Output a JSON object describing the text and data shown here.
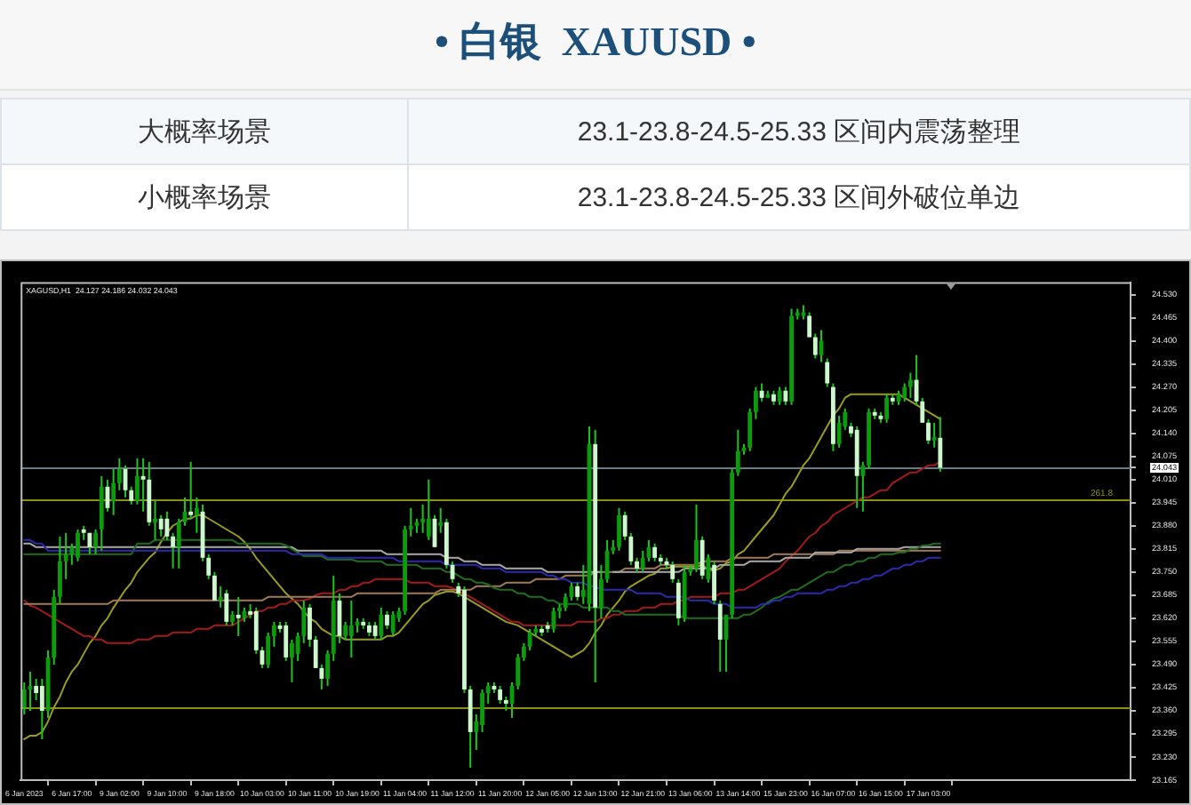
{
  "chart_data": {
    "type": "candlestick",
    "title": "• 白银  XAUUSD •",
    "subtitle": "XAGUSD,H1  24.127 24.186 24.032 24.043",
    "annotations": [
      "大概率场景",
      "23.1-23.8-24.5-25.33 区间内震荡整理",
      "小概率场景",
      "23.1-23.8-24.5-25.33 区间外破位单边",
      {
        "text": "261.8",
        "y": 23.954
      }
    ],
    "categories": [
      "6 Jan 2023",
      null,
      null,
      null,
      null,
      null,
      null,
      null,
      "6 Jan 17:00",
      null,
      null,
      null,
      null,
      null,
      null,
      null,
      "9 Jan 02:00",
      null,
      null,
      null,
      null,
      null,
      null,
      null,
      "9 Jan 10:00",
      null,
      null,
      null,
      null,
      null,
      null,
      null,
      "9 Jan 18:00",
      null,
      null,
      null,
      null,
      null,
      null,
      null,
      "10 Jan 03:00",
      null,
      null,
      null,
      null,
      null,
      null,
      null,
      "10 Jan 11:00",
      null,
      null,
      null,
      null,
      null,
      null,
      null,
      "10 Jan 19:00",
      null,
      null,
      null,
      null,
      null,
      null,
      null,
      "11 Jan 04:00",
      null,
      null,
      null,
      null,
      null,
      null,
      null,
      "11 Jan 12:00",
      null,
      null,
      null,
      null,
      null,
      null,
      null,
      "11 Jan 20:00",
      null,
      null,
      null,
      null,
      null,
      null,
      null,
      "12 Jan 05:00",
      null,
      null,
      null,
      null,
      null,
      null,
      null,
      "12 Jan 13:00",
      null,
      null,
      null,
      null,
      null,
      null,
      null,
      "12 Jan 21:00",
      null,
      null,
      null,
      null,
      null,
      null,
      null,
      "13 Jan 06:00",
      null,
      null,
      null,
      null,
      null,
      null,
      null,
      "13 Jan 14:00",
      null,
      null,
      null,
      null,
      null,
      null,
      null,
      "15 Jan 23:00",
      null,
      null,
      null,
      null,
      null,
      null,
      null,
      "16 Jan 07:00",
      null,
      null,
      null,
      null,
      null,
      null,
      null,
      "16 Jan 15:00",
      null,
      null,
      null,
      null,
      null,
      null,
      null,
      "17 Jan 03:00",
      null,
      null
    ],
    "ohlc": [
      [
        23.37,
        23.44,
        23.35,
        23.42
      ],
      [
        23.42,
        23.47,
        23.36,
        23.43
      ],
      [
        23.43,
        23.45,
        23.39,
        23.41
      ],
      [
        23.43,
        23.45,
        23.28,
        23.36
      ],
      [
        23.36,
        23.53,
        23.34,
        23.51
      ],
      [
        23.51,
        23.7,
        23.49,
        23.68
      ],
      [
        23.68,
        23.85,
        23.66,
        23.78
      ],
      [
        23.78,
        23.86,
        23.73,
        23.8
      ],
      [
        23.8,
        23.83,
        23.77,
        23.82
      ],
      [
        23.79,
        23.87,
        23.78,
        23.86
      ],
      [
        23.87,
        23.88,
        23.84,
        23.86
      ],
      [
        23.86,
        23.86,
        23.8,
        23.82
      ],
      [
        23.82,
        23.87,
        23.8,
        23.86
      ],
      [
        23.87,
        24.02,
        23.81,
        23.99
      ],
      [
        23.99,
        24.01,
        23.92,
        23.93
      ],
      [
        23.95,
        24.04,
        23.91,
        24.0
      ],
      [
        24.0,
        24.07,
        23.98,
        24.04
      ],
      [
        24.04,
        24.05,
        23.96,
        23.98
      ],
      [
        23.98,
        23.99,
        23.94,
        23.95
      ],
      [
        23.95,
        24.07,
        23.94,
        24.02
      ],
      [
        24.02,
        24.07,
        23.92,
        24.01
      ],
      [
        24.01,
        24.06,
        23.88,
        23.89
      ],
      [
        23.89,
        23.95,
        23.84,
        23.9
      ],
      [
        23.9,
        23.91,
        23.85,
        23.87
      ],
      [
        23.9,
        23.92,
        23.84,
        23.85
      ],
      [
        23.85,
        23.86,
        23.76,
        23.82
      ],
      [
        23.82,
        23.9,
        23.76,
        23.89
      ],
      [
        23.89,
        23.96,
        23.88,
        23.92
      ],
      [
        23.92,
        24.06,
        23.9,
        23.91
      ],
      [
        23.91,
        23.96,
        23.86,
        23.93
      ],
      [
        23.92,
        23.94,
        23.78,
        23.79
      ],
      [
        23.79,
        23.8,
        23.73,
        23.74
      ],
      [
        23.74,
        23.75,
        23.67,
        23.67
      ],
      [
        23.67,
        23.71,
        23.65,
        23.68
      ],
      [
        23.69,
        23.7,
        23.6,
        23.61
      ],
      [
        23.61,
        23.64,
        23.6,
        23.63
      ],
      [
        23.63,
        23.68,
        23.57,
        23.62
      ],
      [
        23.62,
        23.65,
        23.61,
        23.64
      ],
      [
        23.64,
        23.66,
        23.62,
        23.63
      ],
      [
        23.64,
        23.65,
        23.52,
        23.53
      ],
      [
        23.53,
        23.54,
        23.48,
        23.49
      ],
      [
        23.49,
        23.58,
        23.48,
        23.57
      ],
      [
        23.57,
        23.61,
        23.54,
        23.6
      ],
      [
        23.6,
        23.61,
        23.58,
        23.59
      ],
      [
        23.6,
        23.61,
        23.5,
        23.51
      ],
      [
        23.51,
        23.56,
        23.44,
        23.55
      ],
      [
        23.52,
        23.58,
        23.5,
        23.57
      ],
      [
        23.57,
        23.67,
        23.55,
        23.65
      ],
      [
        23.65,
        23.66,
        23.54,
        23.56
      ],
      [
        23.56,
        23.57,
        23.48,
        23.48
      ],
      [
        23.48,
        23.49,
        23.42,
        23.45
      ],
      [
        23.45,
        23.53,
        23.43,
        23.52
      ],
      [
        23.52,
        23.74,
        23.5,
        23.67
      ],
      [
        23.67,
        23.69,
        23.55,
        23.57
      ],
      [
        23.57,
        23.61,
        23.56,
        23.6
      ],
      [
        23.57,
        23.67,
        23.51,
        23.6
      ],
      [
        23.6,
        23.62,
        23.58,
        23.61
      ],
      [
        23.61,
        23.62,
        23.59,
        23.6
      ],
      [
        23.6,
        23.61,
        23.57,
        23.58
      ],
      [
        23.6,
        23.61,
        23.56,
        23.57
      ],
      [
        23.57,
        23.65,
        23.56,
        23.63
      ],
      [
        23.63,
        23.64,
        23.59,
        23.6
      ],
      [
        23.58,
        23.64,
        23.57,
        23.63
      ],
      [
        23.62,
        23.65,
        23.61,
        23.64
      ],
      [
        23.64,
        23.88,
        23.63,
        23.87
      ],
      [
        23.87,
        23.93,
        23.85,
        23.88
      ],
      [
        23.88,
        23.9,
        23.86,
        23.89
      ],
      [
        23.89,
        23.94,
        23.86,
        23.9
      ],
      [
        23.85,
        24.01,
        23.84,
        23.9
      ],
      [
        23.9,
        23.91,
        23.82,
        23.82
      ],
      [
        23.88,
        23.93,
        23.86,
        23.89
      ],
      [
        23.89,
        23.9,
        23.76,
        23.77
      ],
      [
        23.77,
        23.78,
        23.72,
        23.73
      ],
      [
        23.71,
        23.72,
        23.68,
        23.69
      ],
      [
        23.7,
        23.71,
        23.41,
        23.42
      ],
      [
        23.42,
        23.43,
        23.2,
        23.3
      ],
      [
        23.3,
        23.35,
        23.25,
        23.33
      ],
      [
        23.32,
        23.42,
        23.3,
        23.41
      ],
      [
        23.41,
        23.44,
        23.38,
        23.43
      ],
      [
        23.43,
        23.44,
        23.41,
        23.42
      ],
      [
        23.42,
        23.43,
        23.38,
        23.39
      ],
      [
        23.39,
        23.4,
        23.36,
        23.38
      ],
      [
        23.38,
        23.44,
        23.34,
        23.43
      ],
      [
        23.43,
        23.52,
        23.42,
        23.51
      ],
      [
        23.51,
        23.55,
        23.5,
        23.54
      ],
      [
        23.54,
        23.59,
        23.53,
        23.58
      ],
      [
        23.58,
        23.6,
        23.57,
        23.59
      ],
      [
        23.59,
        23.6,
        23.57,
        23.58
      ],
      [
        23.6,
        23.61,
        23.58,
        23.59
      ],
      [
        23.59,
        23.65,
        23.58,
        23.64
      ],
      [
        23.64,
        23.66,
        23.62,
        23.65
      ],
      [
        23.65,
        23.69,
        23.64,
        23.68
      ],
      [
        23.68,
        23.72,
        23.67,
        23.71
      ],
      [
        23.71,
        23.72,
        23.67,
        23.68
      ],
      [
        23.68,
        23.77,
        23.66,
        23.7
      ],
      [
        23.66,
        24.16,
        23.64,
        24.11
      ],
      [
        24.11,
        24.15,
        23.44,
        23.65
      ],
      [
        23.65,
        23.77,
        23.62,
        23.73
      ],
      [
        23.73,
        23.84,
        23.72,
        23.81
      ],
      [
        23.81,
        23.84,
        23.8,
        23.82
      ],
      [
        23.82,
        23.93,
        23.81,
        23.91
      ],
      [
        23.91,
        23.92,
        23.84,
        23.85
      ],
      [
        23.85,
        23.86,
        23.77,
        23.78
      ],
      [
        23.78,
        23.79,
        23.75,
        23.76
      ],
      [
        23.76,
        23.81,
        23.75,
        23.79
      ],
      [
        23.79,
        23.84,
        23.78,
        23.82
      ],
      [
        23.82,
        23.83,
        23.78,
        23.79
      ],
      [
        23.79,
        23.8,
        23.77,
        23.78
      ],
      [
        23.78,
        23.79,
        23.76,
        23.77
      ],
      [
        23.77,
        23.78,
        23.72,
        23.73
      ],
      [
        23.72,
        23.73,
        23.6,
        23.62
      ],
      [
        23.62,
        23.77,
        23.61,
        23.75
      ],
      [
        23.75,
        23.77,
        23.74,
        23.76
      ],
      [
        23.76,
        23.94,
        23.75,
        23.84
      ],
      [
        23.84,
        23.85,
        23.73,
        23.74
      ],
      [
        23.73,
        23.8,
        23.72,
        23.79
      ],
      [
        23.77,
        23.78,
        23.66,
        23.67
      ],
      [
        23.66,
        23.67,
        23.47,
        23.56
      ],
      [
        23.56,
        23.63,
        23.47,
        23.63
      ],
      [
        23.63,
        24.04,
        23.62,
        24.03
      ],
      [
        24.03,
        24.15,
        24.02,
        24.09
      ],
      [
        24.09,
        24.11,
        24.08,
        24.1
      ],
      [
        24.1,
        24.21,
        24.09,
        24.2
      ],
      [
        24.2,
        24.27,
        24.18,
        24.26
      ],
      [
        24.26,
        24.28,
        24.23,
        24.24
      ],
      [
        24.24,
        24.26,
        24.24,
        24.25
      ],
      [
        24.25,
        24.26,
        24.22,
        24.23
      ],
      [
        24.23,
        24.27,
        24.22,
        24.26
      ],
      [
        24.26,
        24.27,
        24.22,
        24.23
      ],
      [
        24.23,
        24.49,
        24.22,
        24.47
      ],
      [
        24.47,
        24.49,
        24.46,
        24.48
      ],
      [
        24.47,
        24.5,
        24.46,
        24.48
      ],
      [
        24.47,
        24.48,
        24.41,
        24.41
      ],
      [
        24.41,
        24.42,
        24.35,
        24.36
      ],
      [
        24.36,
        24.43,
        24.34,
        24.4
      ],
      [
        24.34,
        24.35,
        24.27,
        24.28
      ],
      [
        24.27,
        24.28,
        24.09,
        24.11
      ],
      [
        24.11,
        24.19,
        24.1,
        24.17
      ],
      [
        24.16,
        24.21,
        24.15,
        24.2
      ],
      [
        24.16,
        24.17,
        24.13,
        24.14
      ],
      [
        24.15,
        24.16,
        23.93,
        24.02
      ],
      [
        24.02,
        24.06,
        23.92,
        24.05
      ],
      [
        24.05,
        24.21,
        24.04,
        24.2
      ],
      [
        24.2,
        24.21,
        24.18,
        24.19
      ],
      [
        24.19,
        24.2,
        24.17,
        24.18
      ],
      [
        24.18,
        24.25,
        24.17,
        24.24
      ],
      [
        24.24,
        24.25,
        24.22,
        24.23
      ],
      [
        24.23,
        24.26,
        24.22,
        24.25
      ],
      [
        24.24,
        24.28,
        24.23,
        24.27
      ],
      [
        24.27,
        24.31,
        24.24,
        24.29
      ],
      [
        24.29,
        24.36,
        24.22,
        24.23
      ],
      [
        24.23,
        24.24,
        24.17,
        24.17
      ],
      [
        24.17,
        24.18,
        24.11,
        24.12
      ],
      [
        24.12,
        24.17,
        24.1,
        24.13
      ],
      [
        24.127,
        24.186,
        24.032,
        24.043
      ]
    ],
    "series": [
      {
        "type": "line",
        "color": "#9b9b1c",
        "values": [
          23.28,
          23.29,
          23.29,
          23.3,
          23.33,
          23.37,
          23.4,
          23.44,
          23.47,
          23.49,
          23.52,
          23.55,
          23.57,
          23.6,
          23.62,
          23.65,
          23.675,
          23.7,
          23.72,
          23.75,
          23.77,
          23.79,
          23.805,
          23.835,
          23.86,
          23.88,
          23.89,
          23.9,
          23.9,
          23.91,
          23.91,
          23.9,
          23.89,
          23.88,
          23.87,
          23.86,
          23.85,
          23.835,
          23.815,
          23.79,
          23.77,
          23.75,
          23.73,
          23.71,
          23.69,
          23.675,
          23.66,
          23.64,
          23.62,
          23.61,
          23.59,
          23.58,
          23.57,
          23.57,
          23.56,
          23.56,
          23.56,
          23.56,
          23.56,
          23.56,
          23.56,
          23.57,
          23.57,
          23.58,
          23.6,
          23.62,
          23.64,
          23.66,
          23.67,
          23.685,
          23.69,
          23.695,
          23.695,
          23.69,
          23.68,
          23.67,
          23.66,
          23.65,
          23.64,
          23.63,
          23.62,
          23.61,
          23.605,
          23.6,
          23.59,
          23.58,
          23.57,
          23.56,
          23.55,
          23.54,
          23.53,
          23.52,
          23.51,
          23.52,
          23.53,
          23.55,
          23.58,
          23.6,
          23.63,
          23.65,
          23.67,
          23.695,
          23.71,
          23.72,
          23.73,
          23.74,
          23.745,
          23.76,
          23.76,
          23.765,
          23.765,
          23.765,
          23.765,
          23.765,
          23.77,
          23.755,
          23.755,
          23.76,
          23.775,
          23.78,
          23.8,
          23.81,
          23.83,
          23.85,
          23.87,
          23.89,
          23.91,
          23.94,
          23.97,
          23.99,
          24.02,
          24.05,
          24.07,
          24.1,
          24.13,
          24.16,
          24.19,
          24.21,
          24.24,
          24.25,
          24.25,
          24.25,
          24.25,
          24.25,
          24.25,
          24.25,
          24.25,
          24.25,
          24.24,
          24.23,
          24.22,
          24.21,
          24.2,
          24.19,
          24.18
        ]
      },
      {
        "type": "line",
        "color": "#a31a1a",
        "values": [
          23.67,
          23.655,
          23.65,
          23.64,
          23.63,
          23.62,
          23.61,
          23.6,
          23.59,
          23.58,
          23.57,
          23.57,
          23.56,
          23.56,
          23.55,
          23.55,
          23.55,
          23.55,
          23.55,
          23.56,
          23.56,
          23.56,
          23.57,
          23.57,
          23.57,
          23.58,
          23.58,
          23.58,
          23.58,
          23.59,
          23.59,
          23.59,
          23.6,
          23.6,
          23.6,
          23.6,
          23.61,
          23.62,
          23.63,
          23.64,
          23.64,
          23.65,
          23.65,
          23.66,
          23.66,
          23.67,
          23.67,
          23.67,
          23.675,
          23.685,
          23.69,
          23.69,
          23.69,
          23.7,
          23.7,
          23.71,
          23.71,
          23.72,
          23.72,
          23.73,
          23.73,
          23.73,
          23.73,
          23.73,
          23.73,
          23.72,
          23.72,
          23.72,
          23.72,
          23.71,
          23.71,
          23.71,
          23.705,
          23.695,
          23.69,
          23.68,
          23.67,
          23.66,
          23.65,
          23.64,
          23.63,
          23.62,
          23.61,
          23.61,
          23.6,
          23.6,
          23.6,
          23.6,
          23.6,
          23.6,
          23.6,
          23.6,
          23.6,
          23.61,
          23.61,
          23.61,
          23.61,
          23.62,
          23.62,
          23.63,
          23.63,
          23.64,
          23.64,
          23.64,
          23.65,
          23.65,
          23.65,
          23.66,
          23.66,
          23.66,
          23.67,
          23.67,
          23.68,
          23.68,
          23.68,
          23.68,
          23.68,
          23.69,
          23.69,
          23.69,
          23.7,
          23.7,
          23.71,
          23.72,
          23.73,
          23.74,
          23.75,
          23.76,
          23.78,
          23.795,
          23.81,
          23.83,
          23.85,
          23.86,
          23.88,
          23.89,
          23.91,
          23.92,
          23.93,
          23.94,
          23.95,
          23.96,
          23.96,
          23.97,
          23.98,
          23.98,
          24.0,
          24.01,
          24.02,
          24.03,
          24.03,
          24.04,
          24.05,
          24.05,
          24.06
        ]
      },
      {
        "type": "line",
        "color": "#a27a55",
        "values": [
          23.66,
          23.66,
          23.66,
          23.66,
          23.66,
          23.66,
          23.66,
          23.66,
          23.66,
          23.66,
          23.66,
          23.66,
          23.66,
          23.66,
          23.66,
          23.67,
          23.67,
          23.67,
          23.67,
          23.67,
          23.67,
          23.67,
          23.67,
          23.67,
          23.67,
          23.67,
          23.67,
          23.67,
          23.67,
          23.67,
          23.67,
          23.67,
          23.67,
          23.67,
          23.67,
          23.67,
          23.67,
          23.67,
          23.67,
          23.67,
          23.67,
          23.68,
          23.68,
          23.68,
          23.68,
          23.68,
          23.68,
          23.68,
          23.68,
          23.68,
          23.68,
          23.68,
          23.68,
          23.68,
          23.68,
          23.68,
          23.69,
          23.69,
          23.69,
          23.69,
          23.69,
          23.69,
          23.69,
          23.69,
          23.69,
          23.69,
          23.69,
          23.69,
          23.69,
          23.69,
          23.7,
          23.7,
          23.7,
          23.7,
          23.7,
          23.7,
          23.71,
          23.71,
          23.71,
          23.71,
          23.71,
          23.72,
          23.72,
          23.72,
          23.72,
          23.72,
          23.73,
          23.73,
          23.73,
          23.73,
          23.73,
          23.74,
          23.74,
          23.74,
          23.74,
          23.74,
          23.75,
          23.75,
          23.75,
          23.75,
          23.75,
          23.76,
          23.76,
          23.76,
          23.76,
          23.76,
          23.76,
          23.77,
          23.77,
          23.77,
          23.77,
          23.77,
          23.77,
          23.77,
          23.78,
          23.78,
          23.78,
          23.78,
          23.78,
          23.79,
          23.79,
          23.79,
          23.79,
          23.79,
          23.79,
          23.79,
          23.8,
          23.8,
          23.8,
          23.8,
          23.8,
          23.8,
          23.8,
          23.8,
          23.8,
          23.8,
          23.8,
          23.81,
          23.81,
          23.81,
          23.81,
          23.81,
          23.81,
          23.81,
          23.81,
          23.81,
          23.81,
          23.81,
          23.81,
          23.81,
          23.81,
          23.81,
          23.81,
          23.81,
          23.81
        ]
      },
      {
        "type": "line",
        "color": "#a9a9a9",
        "values": [
          23.83,
          23.83,
          23.82,
          23.82,
          23.82,
          23.82,
          23.82,
          23.82,
          23.82,
          23.82,
          23.82,
          23.82,
          23.82,
          23.82,
          23.82,
          23.82,
          23.82,
          23.82,
          23.82,
          23.82,
          23.82,
          23.82,
          23.82,
          23.82,
          23.82,
          23.82,
          23.82,
          23.82,
          23.82,
          23.82,
          23.82,
          23.82,
          23.82,
          23.82,
          23.82,
          23.82,
          23.82,
          23.82,
          23.82,
          23.82,
          23.82,
          23.82,
          23.82,
          23.82,
          23.82,
          23.82,
          23.81,
          23.81,
          23.81,
          23.81,
          23.81,
          23.81,
          23.81,
          23.81,
          23.81,
          23.81,
          23.81,
          23.81,
          23.81,
          23.81,
          23.81,
          23.8,
          23.8,
          23.8,
          23.8,
          23.8,
          23.8,
          23.8,
          23.8,
          23.8,
          23.8,
          23.79,
          23.79,
          23.79,
          23.78,
          23.78,
          23.78,
          23.77,
          23.77,
          23.77,
          23.77,
          23.76,
          23.76,
          23.76,
          23.76,
          23.76,
          23.76,
          23.76,
          23.75,
          23.75,
          23.75,
          23.75,
          23.75,
          23.75,
          23.75,
          23.75,
          23.75,
          23.75,
          null,
          23.75,
          23.75,
          23.75,
          23.75,
          23.75,
          23.75,
          23.75,
          23.75,
          23.75,
          23.75,
          23.75,
          23.75,
          23.76,
          23.76,
          23.76,
          23.76,
          23.76,
          23.76,
          23.77,
          23.77,
          23.77,
          23.77,
          23.77,
          23.78,
          23.78,
          23.78,
          23.78,
          23.78,
          23.78,
          23.79,
          23.79,
          23.79,
          23.79,
          23.79,
          23.805,
          23.805,
          23.805,
          23.805,
          23.805,
          23.805,
          23.805,
          23.815,
          23.815,
          23.815,
          23.815,
          23.815,
          23.815,
          23.815,
          23.815,
          23.82,
          23.82,
          23.82,
          23.82,
          23.82,
          23.82,
          23.82
        ]
      },
      {
        "type": "line",
        "color": "#1f6e1f",
        "values": [
          23.8,
          23.8,
          23.8,
          23.8,
          23.8,
          23.8,
          23.8,
          23.8,
          23.8,
          23.8,
          23.8,
          23.8,
          23.8,
          23.8,
          23.8,
          23.8,
          23.8,
          23.8,
          23.8,
          23.83,
          23.83,
          23.83,
          23.84,
          23.84,
          23.84,
          23.84,
          23.84,
          23.84,
          23.84,
          23.84,
          23.84,
          23.84,
          23.84,
          23.84,
          23.84,
          23.84,
          23.83,
          23.83,
          23.83,
          23.83,
          23.83,
          23.83,
          23.83,
          23.83,
          23.825,
          23.815,
          23.805,
          23.795,
          23.795,
          23.795,
          23.795,
          23.785,
          23.785,
          23.785,
          23.785,
          23.785,
          23.78,
          23.78,
          23.78,
          23.78,
          23.78,
          23.77,
          23.77,
          23.77,
          23.77,
          23.77,
          23.77,
          23.76,
          23.76,
          23.76,
          23.76,
          23.75,
          23.75,
          23.74,
          23.73,
          23.73,
          23.72,
          23.72,
          23.715,
          23.705,
          23.7,
          23.7,
          23.7,
          23.69,
          23.69,
          23.68,
          23.68,
          23.68,
          23.67,
          23.67,
          23.66,
          23.66,
          23.66,
          23.66,
          23.65,
          23.65,
          23.65,
          23.65,
          23.65,
          23.64,
          23.64,
          23.63,
          23.63,
          23.63,
          23.63,
          23.63,
          23.63,
          23.63,
          23.63,
          23.63,
          23.63,
          23.62,
          23.62,
          23.62,
          23.62,
          23.62,
          23.62,
          23.62,
          23.62,
          23.62,
          23.62,
          23.63,
          23.63,
          23.64,
          23.65,
          23.665,
          23.675,
          23.68,
          23.69,
          23.7,
          23.7,
          23.71,
          23.72,
          23.73,
          23.74,
          23.75,
          23.75,
          23.76,
          23.77,
          23.77,
          23.78,
          23.78,
          23.79,
          23.79,
          23.8,
          23.8,
          23.8,
          23.805,
          23.805,
          23.815,
          23.815,
          23.825,
          23.825,
          23.83,
          23.83
        ]
      },
      {
        "type": "line",
        "color": "#2b2bb0",
        "values": [
          23.84,
          23.84,
          23.83,
          23.83,
          23.81,
          23.81,
          23.81,
          23.81,
          23.81,
          23.81,
          23.81,
          23.81,
          23.81,
          23.81,
          23.81,
          23.81,
          23.81,
          23.81,
          23.81,
          23.81,
          23.81,
          23.81,
          23.81,
          23.81,
          23.81,
          23.81,
          23.81,
          23.81,
          23.81,
          23.81,
          23.81,
          23.81,
          23.81,
          23.81,
          23.81,
          23.81,
          23.81,
          23.81,
          23.81,
          23.81,
          23.81,
          23.81,
          23.81,
          23.81,
          23.81,
          23.8,
          23.8,
          23.8,
          23.8,
          23.8,
          23.8,
          23.79,
          23.79,
          23.79,
          23.79,
          23.79,
          23.79,
          23.79,
          23.79,
          23.79,
          23.79,
          23.79,
          23.79,
          23.78,
          23.78,
          23.78,
          23.78,
          23.78,
          23.78,
          23.78,
          23.78,
          23.77,
          23.77,
          23.77,
          23.77,
          23.77,
          23.77,
          23.76,
          23.76,
          23.76,
          23.76,
          23.75,
          23.75,
          23.75,
          23.75,
          23.75,
          23.75,
          23.75,
          23.74,
          23.74,
          23.73,
          23.73,
          23.72,
          23.72,
          23.72,
          23.71,
          23.71,
          23.7,
          23.7,
          23.7,
          23.7,
          23.7,
          23.7,
          23.69,
          23.69,
          23.69,
          23.69,
          23.69,
          23.68,
          23.68,
          23.68,
          23.68,
          23.67,
          23.67,
          23.67,
          23.67,
          23.66,
          23.66,
          23.66,
          23.65,
          23.65,
          23.65,
          23.65,
          23.65,
          23.66,
          23.66,
          23.67,
          23.67,
          23.68,
          23.68,
          23.69,
          23.69,
          23.69,
          23.69,
          23.69,
          23.7,
          23.7,
          23.71,
          23.71,
          23.72,
          23.72,
          23.73,
          23.73,
          23.74,
          23.74,
          23.75,
          23.76,
          23.76,
          23.77,
          23.77,
          23.78,
          23.78,
          23.79,
          23.79,
          23.79
        ]
      }
    ],
    "ylim": [
      23.165,
      24.565
    ],
    "yticks": [
      23.165,
      {
        "value": 23.23,
        "label": "23.230"
      },
      23.295,
      {
        "value": 23.36,
        "label": "23.360"
      },
      23.425,
      {
        "value": 23.49,
        "label": "23.490"
      },
      23.555,
      {
        "value": 23.62,
        "label": "23.620"
      },
      23.685,
      {
        "value": 23.75,
        "label": "23.750"
      },
      23.815,
      {
        "value": 23.88,
        "label": "23.880"
      },
      23.945,
      {
        "value": 24.01,
        "label": "24.010"
      },
      24.043,
      24.075,
      {
        "value": 24.14,
        "label": "24.140"
      },
      24.205,
      {
        "value": 24.27,
        "label": "24.270"
      },
      24.335,
      {
        "value": 24.4,
        "label": "24.400"
      },
      24.465,
      {
        "value": 24.53,
        "label": "24.530"
      }
    ],
    "ref_lines": [
      {
        "axis": "y",
        "value": 24.043,
        "color": "#6c7a88"
      },
      {
        "axis": "y",
        "value": 23.954,
        "color": "#8f8f10"
      },
      {
        "axis": "y",
        "value": 23.371,
        "color": "#8f8f10"
      }
    ]
  }
}
